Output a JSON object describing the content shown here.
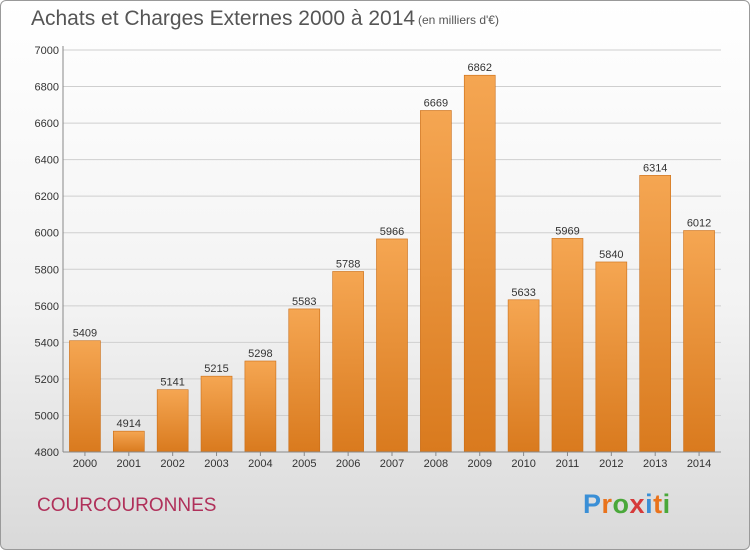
{
  "header": {
    "title": "Achats et Charges Externes 2000 à 2014",
    "subtitle": "(en milliers d'€)"
  },
  "footer": {
    "commune": "COURCOURONNES",
    "logo": "Proxiti",
    "logo_colors": [
      "#3a8fd6",
      "#e9731c",
      "#4aa83a",
      "#d63a3a",
      "#3a8fd6",
      "#e9731c",
      "#4aa83a"
    ]
  },
  "colors": {
    "bar_light": "#f5a652",
    "bar_dark": "#d97a1e",
    "grid": "#cfcfcf",
    "axis_text": "#333333",
    "commune": "#b0305a"
  },
  "chart_data": {
    "type": "bar",
    "categories": [
      "2000",
      "2001",
      "2002",
      "2003",
      "2004",
      "2005",
      "2006",
      "2007",
      "2008",
      "2009",
      "2010",
      "2011",
      "2012",
      "2013",
      "2014"
    ],
    "values": [
      5409,
      4914,
      5141,
      5215,
      5298,
      5583,
      5788,
      5966,
      6669,
      6862,
      5633,
      5969,
      5840,
      6314,
      6012
    ],
    "yticks": [
      4800,
      5000,
      5200,
      5400,
      5600,
      5800,
      6000,
      6200,
      6400,
      6600,
      6800,
      7000
    ],
    "ylim": [
      4800,
      7000
    ],
    "grid": true
  }
}
